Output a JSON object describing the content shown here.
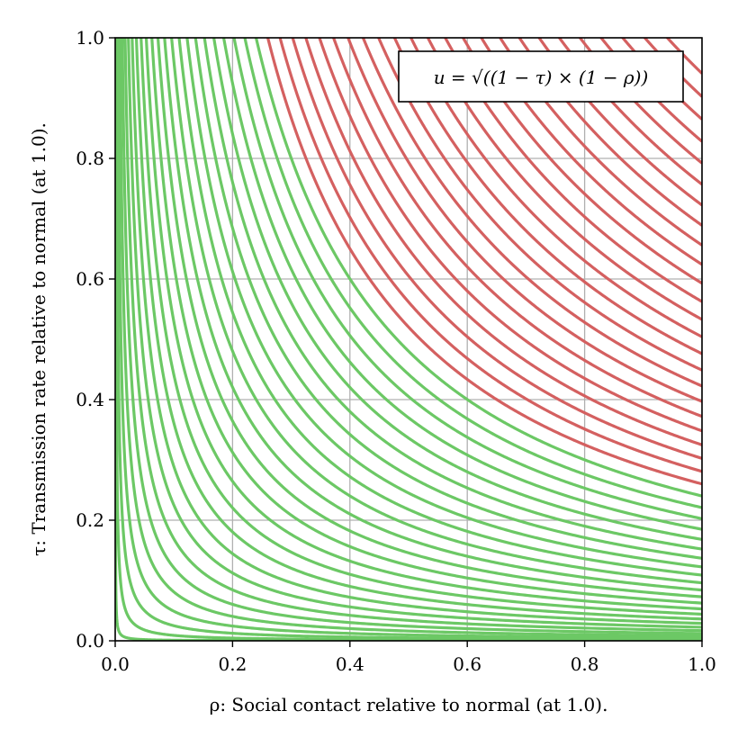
{
  "chart_data": {
    "type": "line",
    "title": "",
    "xlabel": "ρ: Social contact relative to normal (at 1.0).",
    "ylabel": "τ: Transmission rate relative to normal (at 1.0).",
    "xlim": [
      0.0,
      1.0
    ],
    "ylim": [
      0.0,
      1.0
    ],
    "xticks": [
      "0.0",
      "0.2",
      "0.4",
      "0.6",
      "0.8",
      "1.0"
    ],
    "yticks": [
      "0.0",
      "0.2",
      "0.4",
      "0.6",
      "0.8",
      "1.0"
    ],
    "grid": true,
    "legend_text": "u = √((1 − τ) × (1 − ρ))",
    "legend_position": "top-right",
    "curve_family": "τ = c / ρ",
    "colors": {
      "green": "#6cc865",
      "red": "#d46060",
      "grid": "#b0b0b0"
    },
    "series": [
      {
        "color": "green",
        "c": 0.0001
      },
      {
        "color": "green",
        "c": 0.0009
      },
      {
        "color": "green",
        "c": 0.0025
      },
      {
        "color": "green",
        "c": 0.0049
      },
      {
        "color": "green",
        "c": 0.0081
      },
      {
        "color": "green",
        "c": 0.0121
      },
      {
        "color": "green",
        "c": 0.0169
      },
      {
        "color": "green",
        "c": 0.0225
      },
      {
        "color": "green",
        "c": 0.0289
      },
      {
        "color": "green",
        "c": 0.0361
      },
      {
        "color": "green",
        "c": 0.0441
      },
      {
        "color": "green",
        "c": 0.0529
      },
      {
        "color": "green",
        "c": 0.0625
      },
      {
        "color": "green",
        "c": 0.0729
      },
      {
        "color": "green",
        "c": 0.0841
      },
      {
        "color": "green",
        "c": 0.0961
      },
      {
        "color": "green",
        "c": 0.1089
      },
      {
        "color": "green",
        "c": 0.1225
      },
      {
        "color": "green",
        "c": 0.1369
      },
      {
        "color": "green",
        "c": 0.1521
      },
      {
        "color": "green",
        "c": 0.1681
      },
      {
        "color": "green",
        "c": 0.1849
      },
      {
        "color": "green",
        "c": 0.2025
      },
      {
        "color": "green",
        "c": 0.2209
      },
      {
        "color": "green",
        "c": 0.2401
      },
      {
        "color": "red",
        "c": 0.2601
      },
      {
        "color": "red",
        "c": 0.2809
      },
      {
        "color": "red",
        "c": 0.3025
      },
      {
        "color": "red",
        "c": 0.3249
      },
      {
        "color": "red",
        "c": 0.3481
      },
      {
        "color": "red",
        "c": 0.3721
      },
      {
        "color": "red",
        "c": 0.3969
      },
      {
        "color": "red",
        "c": 0.4225
      },
      {
        "color": "red",
        "c": 0.4489
      },
      {
        "color": "red",
        "c": 0.4761
      },
      {
        "color": "red",
        "c": 0.5041
      },
      {
        "color": "red",
        "c": 0.5329
      },
      {
        "color": "red",
        "c": 0.5625
      },
      {
        "color": "red",
        "c": 0.5929
      },
      {
        "color": "red",
        "c": 0.6241
      },
      {
        "color": "red",
        "c": 0.6561
      },
      {
        "color": "red",
        "c": 0.6889
      },
      {
        "color": "red",
        "c": 0.7225
      },
      {
        "color": "red",
        "c": 0.7569
      },
      {
        "color": "red",
        "c": 0.7921
      },
      {
        "color": "red",
        "c": 0.8281
      },
      {
        "color": "red",
        "c": 0.8649
      },
      {
        "color": "red",
        "c": 0.9025
      },
      {
        "color": "red",
        "c": 0.9409
      }
    ]
  }
}
